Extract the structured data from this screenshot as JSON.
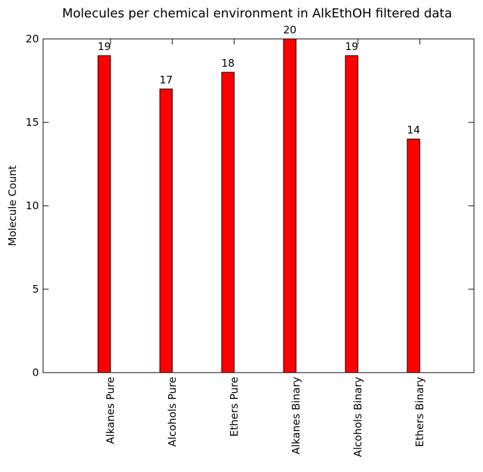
{
  "chart_data": {
    "type": "bar",
    "title": "Molecules per chemical environment in AlkEthOH filtered data",
    "xlabel": "",
    "ylabel": "Molecule Count",
    "categories": [
      "Alkanes Pure",
      "Alcohols Pure",
      "Ethers Pure",
      "Alkanes Binary",
      "Alcohols Binary",
      "Ethers Binary"
    ],
    "values": [
      19,
      17,
      18,
      20,
      19,
      14
    ],
    "data_labels": [
      "19",
      "17",
      "18",
      "20",
      "19",
      "14"
    ],
    "ylim": [
      0,
      20
    ],
    "yticks": [
      "0",
      "5",
      "10",
      "15",
      "20"
    ],
    "bar_color": "#ff0000",
    "grid": false,
    "legend": "none"
  }
}
